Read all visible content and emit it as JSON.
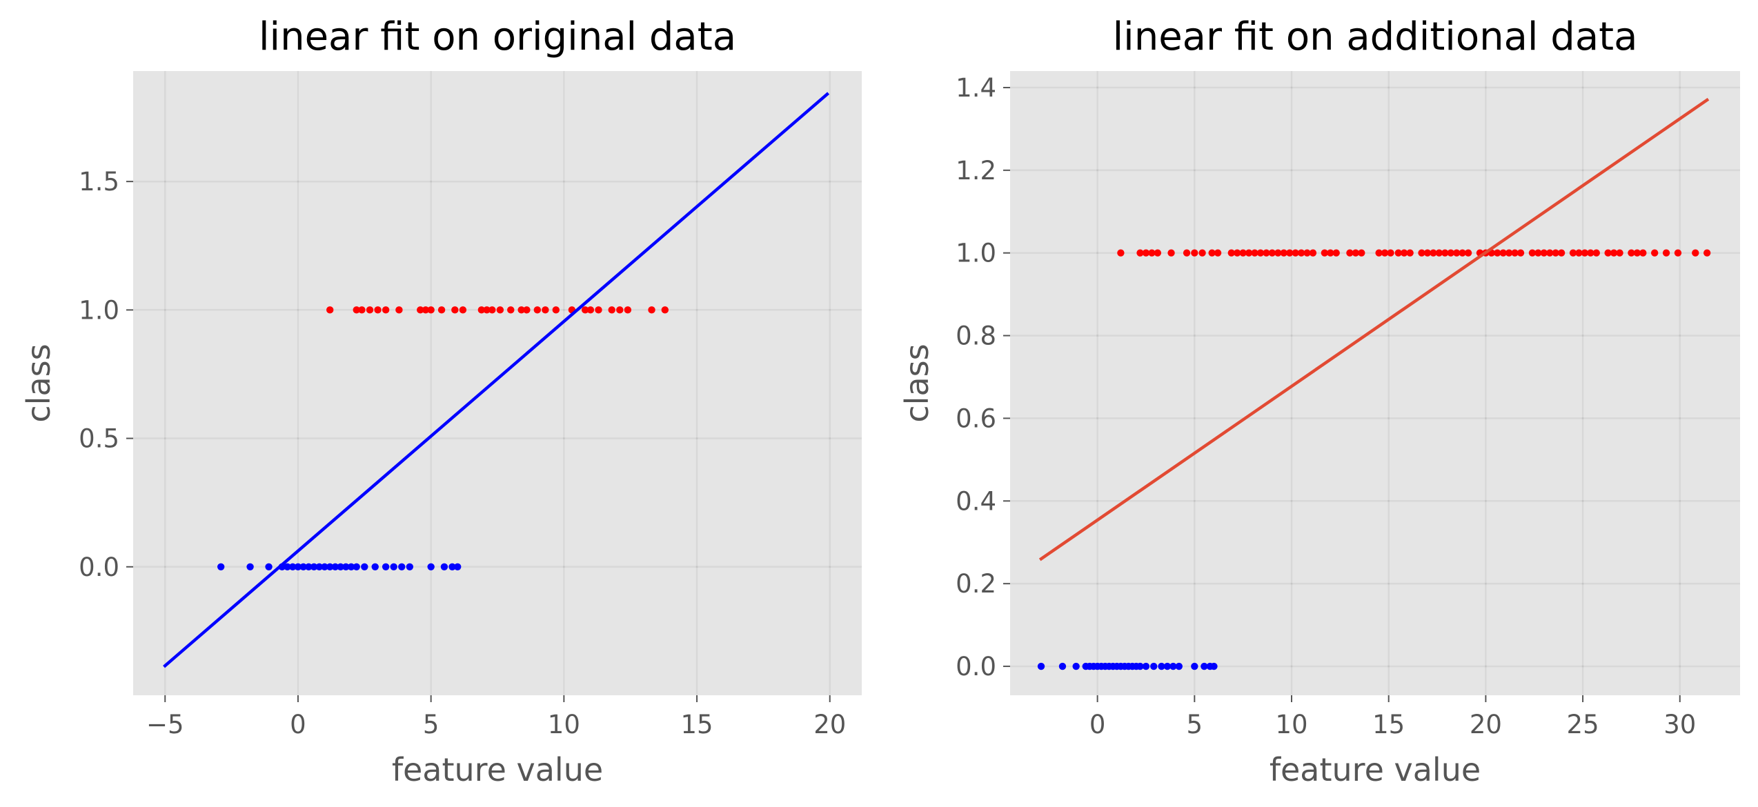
{
  "chart_data": [
    {
      "type": "scatter",
      "title": "linear fit on original data",
      "xlabel": "feature value",
      "ylabel": "class",
      "xlim": [
        -6.2,
        21.2
      ],
      "ylim": [
        -0.5,
        1.93
      ],
      "xticks": [
        -5,
        0,
        5,
        10,
        15,
        20
      ],
      "xtick_labels": [
        "−5",
        "0",
        "5",
        "10",
        "15",
        "20"
      ],
      "yticks": [
        0.0,
        0.5,
        1.0,
        1.5
      ],
      "ytick_labels": [
        "0.0",
        "0.5",
        "1.0",
        "1.5"
      ],
      "grid": true,
      "series": [
        {
          "color": "#0000ff",
          "kind": "points",
          "points": [
            [
              -2.9,
              0
            ],
            [
              -1.8,
              0
            ],
            [
              -1.1,
              0
            ],
            [
              -0.6,
              0
            ],
            [
              -0.4,
              0
            ],
            [
              -0.2,
              0
            ],
            [
              0.0,
              0
            ],
            [
              0.2,
              0
            ],
            [
              0.4,
              0
            ],
            [
              0.6,
              0
            ],
            [
              0.8,
              0
            ],
            [
              1.0,
              0
            ],
            [
              1.2,
              0
            ],
            [
              1.4,
              0
            ],
            [
              1.6,
              0
            ],
            [
              1.8,
              0
            ],
            [
              2.0,
              0
            ],
            [
              2.2,
              0
            ],
            [
              2.5,
              0
            ],
            [
              2.9,
              0
            ],
            [
              3.3,
              0
            ],
            [
              3.6,
              0
            ],
            [
              3.9,
              0
            ],
            [
              4.2,
              0
            ],
            [
              5.0,
              0
            ],
            [
              5.5,
              0
            ],
            [
              5.8,
              0
            ],
            [
              6.0,
              0
            ]
          ]
        },
        {
          "color": "#ff0000",
          "kind": "points",
          "points": [
            [
              1.2,
              1
            ],
            [
              2.2,
              1
            ],
            [
              2.4,
              1
            ],
            [
              2.7,
              1
            ],
            [
              3.0,
              1
            ],
            [
              3.3,
              1
            ],
            [
              3.8,
              1
            ],
            [
              4.6,
              1
            ],
            [
              4.8,
              1
            ],
            [
              5.0,
              1
            ],
            [
              5.4,
              1
            ],
            [
              5.9,
              1
            ],
            [
              6.2,
              1
            ],
            [
              6.9,
              1
            ],
            [
              7.1,
              1
            ],
            [
              7.3,
              1
            ],
            [
              7.6,
              1
            ],
            [
              8.0,
              1
            ],
            [
              8.4,
              1
            ],
            [
              8.6,
              1
            ],
            [
              9.0,
              1
            ],
            [
              9.3,
              1
            ],
            [
              9.7,
              1
            ],
            [
              10.3,
              1
            ],
            [
              10.8,
              1
            ],
            [
              11.0,
              1
            ],
            [
              11.3,
              1
            ],
            [
              11.8,
              1
            ],
            [
              12.1,
              1
            ],
            [
              12.4,
              1
            ],
            [
              13.3,
              1
            ],
            [
              13.8,
              1
            ]
          ]
        },
        {
          "color": "#0000ff",
          "kind": "line",
          "points": [
            [
              -5,
              -0.385
            ],
            [
              19.9,
              1.84
            ]
          ]
        }
      ]
    },
    {
      "type": "scatter",
      "title": "linear fit on additional data",
      "xlabel": "feature value",
      "ylabel": "class",
      "xlim": [
        -4.5,
        33.1
      ],
      "ylim": [
        -0.07,
        1.44
      ],
      "xticks": [
        0,
        5,
        10,
        15,
        20,
        25,
        30
      ],
      "xtick_labels": [
        "0",
        "5",
        "10",
        "15",
        "20",
        "25",
        "30"
      ],
      "yticks": [
        0.0,
        0.2,
        0.4,
        0.6,
        0.8,
        1.0,
        1.2,
        1.4
      ],
      "ytick_labels": [
        "0.0",
        "0.2",
        "0.4",
        "0.6",
        "0.8",
        "1.0",
        "1.2",
        "1.4"
      ],
      "grid": true,
      "series": [
        {
          "color": "#0000ff",
          "kind": "points",
          "points": [
            [
              -2.9,
              0
            ],
            [
              -1.8,
              0
            ],
            [
              -1.1,
              0
            ],
            [
              -0.6,
              0
            ],
            [
              -0.4,
              0
            ],
            [
              -0.2,
              0
            ],
            [
              0.0,
              0
            ],
            [
              0.2,
              0
            ],
            [
              0.4,
              0
            ],
            [
              0.6,
              0
            ],
            [
              0.8,
              0
            ],
            [
              1.0,
              0
            ],
            [
              1.2,
              0
            ],
            [
              1.4,
              0
            ],
            [
              1.6,
              0
            ],
            [
              1.8,
              0
            ],
            [
              2.0,
              0
            ],
            [
              2.2,
              0
            ],
            [
              2.5,
              0
            ],
            [
              2.9,
              0
            ],
            [
              3.3,
              0
            ],
            [
              3.6,
              0
            ],
            [
              3.9,
              0
            ],
            [
              4.2,
              0
            ],
            [
              5.0,
              0
            ],
            [
              5.5,
              0
            ],
            [
              5.8,
              0
            ],
            [
              6.0,
              0
            ]
          ]
        },
        {
          "color": "#ff0000",
          "kind": "points",
          "points": [
            [
              1.2,
              1
            ],
            [
              2.2,
              1
            ],
            [
              2.5,
              1
            ],
            [
              2.8,
              1
            ],
            [
              3.1,
              1
            ],
            [
              3.8,
              1
            ],
            [
              4.6,
              1
            ],
            [
              5.0,
              1
            ],
            [
              5.4,
              1
            ],
            [
              5.9,
              1
            ],
            [
              6.2,
              1
            ],
            [
              6.9,
              1
            ],
            [
              7.2,
              1
            ],
            [
              7.5,
              1
            ],
            [
              7.8,
              1
            ],
            [
              8.1,
              1
            ],
            [
              8.4,
              1
            ],
            [
              8.7,
              1
            ],
            [
              9.0,
              1
            ],
            [
              9.3,
              1
            ],
            [
              9.6,
              1
            ],
            [
              9.9,
              1
            ],
            [
              10.2,
              1
            ],
            [
              10.5,
              1
            ],
            [
              10.8,
              1
            ],
            [
              11.1,
              1
            ],
            [
              11.7,
              1
            ],
            [
              12.0,
              1
            ],
            [
              12.3,
              1
            ],
            [
              13.0,
              1
            ],
            [
              13.3,
              1
            ],
            [
              13.6,
              1
            ],
            [
              14.5,
              1
            ],
            [
              14.8,
              1
            ],
            [
              15.1,
              1
            ],
            [
              15.5,
              1
            ],
            [
              15.8,
              1
            ],
            [
              16.1,
              1
            ],
            [
              16.7,
              1
            ],
            [
              17.0,
              1
            ],
            [
              17.3,
              1
            ],
            [
              17.6,
              1
            ],
            [
              17.9,
              1
            ],
            [
              18.2,
              1
            ],
            [
              18.5,
              1
            ],
            [
              18.8,
              1
            ],
            [
              19.1,
              1
            ],
            [
              19.7,
              1
            ],
            [
              20.0,
              1
            ],
            [
              20.3,
              1
            ],
            [
              20.6,
              1
            ],
            [
              20.9,
              1
            ],
            [
              21.2,
              1
            ],
            [
              21.5,
              1
            ],
            [
              21.8,
              1
            ],
            [
              22.4,
              1
            ],
            [
              22.7,
              1
            ],
            [
              23.0,
              1
            ],
            [
              23.3,
              1
            ],
            [
              23.6,
              1
            ],
            [
              23.9,
              1
            ],
            [
              24.5,
              1
            ],
            [
              24.8,
              1
            ],
            [
              25.1,
              1
            ],
            [
              25.4,
              1
            ],
            [
              25.7,
              1
            ],
            [
              26.3,
              1
            ],
            [
              26.6,
              1
            ],
            [
              26.9,
              1
            ],
            [
              27.5,
              1
            ],
            [
              27.8,
              1
            ],
            [
              28.1,
              1
            ],
            [
              28.7,
              1
            ],
            [
              29.3,
              1
            ],
            [
              29.9,
              1
            ],
            [
              30.8,
              1
            ],
            [
              31.4,
              1
            ]
          ]
        },
        {
          "color": "#e24a33",
          "kind": "line",
          "points": [
            [
              -2.9,
              0.26
            ],
            [
              31.4,
              1.37
            ]
          ]
        }
      ]
    }
  ]
}
